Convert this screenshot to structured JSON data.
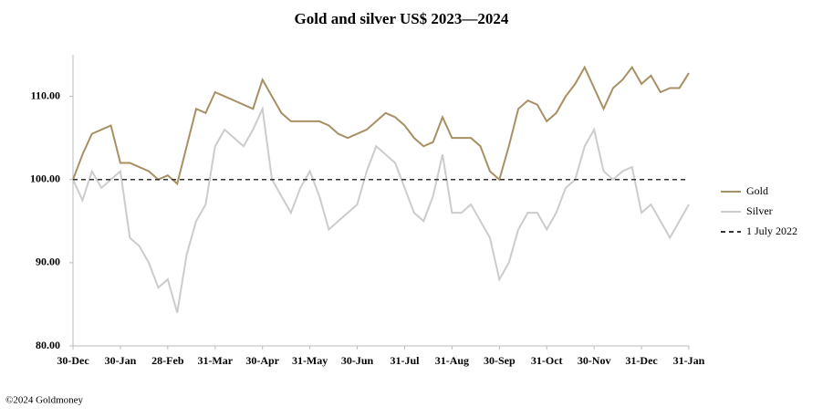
{
  "chart_data": {
    "type": "line",
    "title": "Gold and silver  US$ 2023—2024",
    "source": "©2024 Goldmoney",
    "categories": [
      "30-Dec",
      null,
      null,
      null,
      null,
      "30-Jan",
      null,
      null,
      null,
      null,
      "28-Feb",
      null,
      null,
      null,
      null,
      "31-Mar",
      null,
      null,
      null,
      null,
      "30-Apr",
      null,
      null,
      null,
      null,
      "31-May",
      null,
      null,
      null,
      null,
      "30-Jun",
      null,
      null,
      null,
      null,
      "31-Jul",
      null,
      null,
      null,
      null,
      "31-Aug",
      null,
      null,
      null,
      null,
      "30-Sep",
      null,
      null,
      null,
      null,
      "31-Oct",
      null,
      null,
      null,
      null,
      "30-Nov",
      null,
      null,
      null,
      null,
      "31-Dec",
      null,
      null,
      null,
      null,
      "31-Jan"
    ],
    "series": [
      {
        "name": "Gold",
        "color": "#a89064",
        "values": [
          100,
          103,
          105.5,
          106,
          106.5,
          102,
          102,
          101.5,
          101,
          100,
          100.5,
          99.5,
          104,
          108.5,
          108,
          110.5,
          110,
          109.5,
          109,
          108.5,
          112,
          110,
          108,
          107,
          107,
          107,
          107,
          106.5,
          105.5,
          105,
          105.5,
          106,
          107,
          108,
          107.5,
          106.5,
          105,
          104,
          104.5,
          107.5,
          105,
          105,
          105,
          104,
          101,
          100,
          104,
          108.5,
          109.5,
          109,
          107,
          108,
          110,
          111.5,
          113.5,
          111,
          108.5,
          111,
          112,
          113.5,
          111.5,
          112.5,
          110.5,
          111,
          111,
          112.8
        ]
      },
      {
        "name": "Silver",
        "color": "#cccccc",
        "values": [
          100,
          97.5,
          101,
          99,
          100,
          101,
          93,
          92,
          90,
          87,
          88,
          84,
          91,
          95,
          97,
          104,
          106,
          105,
          104,
          106,
          108.5,
          100,
          98,
          96,
          99,
          101,
          98,
          94,
          95,
          96,
          97,
          101,
          104,
          103,
          102,
          99,
          96,
          95,
          98,
          103,
          96,
          96,
          97,
          95,
          93,
          88,
          90,
          94,
          96,
          96,
          94,
          96,
          99,
          100,
          104,
          106,
          101,
          100,
          101,
          101.5,
          96,
          97,
          95,
          93,
          95,
          97
        ]
      }
    ],
    "reference_line": {
      "name": "1 July 2022",
      "value": 100,
      "color": "#333333"
    },
    "ylim": [
      80,
      115
    ],
    "yticks": [
      {
        "value": 80,
        "label": "80.00"
      },
      {
        "value": 90,
        "label": "90.00"
      },
      {
        "value": 100,
        "label": "100.00"
      },
      {
        "value": 110,
        "label": "110.00"
      }
    ],
    "legend": "right"
  }
}
